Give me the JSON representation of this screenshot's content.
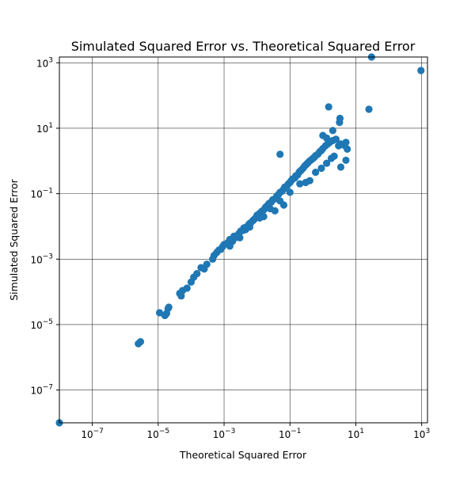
{
  "chart_data": {
    "type": "scatter",
    "title": "Simulated Squared Error vs. Theoretical Squared Error",
    "xlabel": "Theoretical Squared Error",
    "ylabel": "Simulated Squared Error",
    "xscale": "log",
    "yscale": "log",
    "xlim": [
      1e-08,
      1500
    ],
    "ylim": [
      1e-08,
      1500
    ],
    "grid": true,
    "marker_color": "#1f77b4",
    "xticks": [
      {
        "value": 1e-07,
        "base": "10",
        "exp": "−7"
      },
      {
        "value": 1e-05,
        "base": "10",
        "exp": "−5"
      },
      {
        "value": 0.001,
        "base": "10",
        "exp": "−3"
      },
      {
        "value": 0.1,
        "base": "10",
        "exp": "−1"
      },
      {
        "value": 10,
        "base": "10",
        "exp": "1"
      },
      {
        "value": 1000,
        "base": "10",
        "exp": "3"
      }
    ],
    "yticks": [
      {
        "value": 1e-07,
        "base": "10",
        "exp": "−7"
      },
      {
        "value": 1e-05,
        "base": "10",
        "exp": "−5"
      },
      {
        "value": 0.001,
        "base": "10",
        "exp": "−3"
      },
      {
        "value": 0.1,
        "base": "10",
        "exp": "−1"
      },
      {
        "value": 10,
        "base": "10",
        "exp": "1"
      },
      {
        "value": 1000,
        "base": "10",
        "exp": "3"
      }
    ],
    "points": [
      [
        1e-08,
        1e-08
      ],
      [
        2.5e-06,
        2.6e-06
      ],
      [
        2.9e-06,
        3e-06
      ],
      [
        1.1e-05,
        2.3e-05
      ],
      [
        1.6e-05,
        1.9e-05
      ],
      [
        1.8e-05,
        2.2e-05
      ],
      [
        2e-05,
        3.1e-05
      ],
      [
        2.1e-05,
        3.4e-05
      ],
      [
        4.5e-05,
        9e-05
      ],
      [
        5e-05,
        7.5e-05
      ],
      [
        5.5e-05,
        0.00011
      ],
      [
        7.5e-05,
        0.00013
      ],
      [
        0.0001,
        0.0002
      ],
      [
        0.00012,
        0.00028
      ],
      [
        0.00015,
        0.00036
      ],
      [
        0.0002,
        0.00055
      ],
      [
        0.00025,
        0.0005
      ],
      [
        0.0003,
        0.0007
      ],
      [
        0.00045,
        0.001
      ],
      [
        0.0005,
        0.0013
      ],
      [
        0.0006,
        0.0016
      ],
      [
        0.0007,
        0.0019
      ],
      [
        0.0008,
        0.002
      ],
      [
        0.0009,
        0.0024
      ],
      [
        0.001,
        0.0028
      ],
      [
        0.0013,
        0.0032
      ],
      [
        0.0015,
        0.004
      ],
      [
        0.0018,
        0.0035
      ],
      [
        0.002,
        0.005
      ],
      [
        0.0024,
        0.0046
      ],
      [
        0.0028,
        0.006
      ],
      [
        0.0032,
        0.0072
      ],
      [
        0.0037,
        0.0075
      ],
      [
        0.004,
        0.009
      ],
      [
        0.0045,
        0.008
      ],
      [
        0.005,
        0.01
      ],
      [
        0.0058,
        0.012
      ],
      [
        0.0065,
        0.013
      ],
      [
        0.0075,
        0.015
      ],
      [
        0.008,
        0.016
      ],
      [
        0.009,
        0.018
      ],
      [
        0.01,
        0.022
      ],
      [
        0.012,
        0.025
      ],
      [
        0.014,
        0.029
      ],
      [
        0.016,
        0.032
      ],
      [
        0.018,
        0.038
      ],
      [
        0.02,
        0.042
      ],
      [
        0.023,
        0.05
      ],
      [
        0.027,
        0.055
      ],
      [
        0.03,
        0.065
      ],
      [
        0.035,
        0.07
      ],
      [
        0.04,
        0.085
      ],
      [
        0.045,
        0.095
      ],
      [
        0.05,
        0.11
      ],
      [
        0.058,
        0.12
      ],
      [
        0.065,
        0.14
      ],
      [
        0.07,
        0.16
      ],
      [
        0.08,
        0.17
      ],
      [
        0.09,
        0.2
      ],
      [
        0.1,
        0.22
      ],
      [
        0.11,
        0.25
      ],
      [
        0.12,
        0.28
      ],
      [
        0.14,
        0.3
      ],
      [
        0.15,
        0.35
      ],
      [
        0.17,
        0.37
      ],
      [
        0.19,
        0.45
      ],
      [
        0.2,
        0.48
      ],
      [
        0.22,
        0.52
      ],
      [
        0.25,
        0.6
      ],
      [
        0.28,
        0.7
      ],
      [
        0.3,
        0.75
      ],
      [
        0.33,
        0.82
      ],
      [
        0.36,
        0.9
      ],
      [
        0.4,
        1.0
      ],
      [
        0.45,
        1.1
      ],
      [
        0.5,
        1.2
      ],
      [
        0.55,
        1.3
      ],
      [
        0.6,
        1.45
      ],
      [
        0.7,
        1.6
      ],
      [
        0.8,
        1.9
      ],
      [
        0.9,
        2.1
      ],
      [
        1.0,
        2.4
      ],
      [
        1.2,
        2.9
      ],
      [
        1.4,
        3.3
      ],
      [
        1.6,
        3.7
      ],
      [
        2.0,
        4.2
      ],
      [
        2.5,
        4.6
      ],
      [
        3.0,
        2.9
      ],
      [
        3.5,
        3.3
      ],
      [
        4.5,
        3.0
      ],
      [
        5.0,
        3.7
      ],
      [
        5.5,
        2.3
      ],
      [
        0.0015,
        0.0025
      ],
      [
        0.003,
        0.0045
      ],
      [
        0.006,
        0.0095
      ],
      [
        0.012,
        0.018
      ],
      [
        0.025,
        0.035
      ],
      [
        0.05,
        0.06
      ],
      [
        0.1,
        0.11
      ],
      [
        0.2,
        0.2
      ],
      [
        0.3,
        0.22
      ],
      [
        0.4,
        0.25
      ],
      [
        0.6,
        0.45
      ],
      [
        0.9,
        0.6
      ],
      [
        1.3,
        0.85
      ],
      [
        1.8,
        1.2
      ],
      [
        2.2,
        1.4
      ],
      [
        0.016,
        0.02
      ],
      [
        0.035,
        0.03
      ],
      [
        0.065,
        0.045
      ],
      [
        3.5,
        0.65
      ],
      [
        5.0,
        1.05
      ],
      [
        0.05,
        1.6
      ],
      [
        1.0,
        6.0
      ],
      [
        2.0,
        8.5
      ],
      [
        1.3,
        5.0
      ],
      [
        3.2,
        15.0
      ],
      [
        3.3,
        20.0
      ],
      [
        1.5,
        45.0
      ],
      [
        25.0,
        38.0
      ],
      [
        30.0,
        1500.0
      ],
      [
        950.0,
        580.0
      ]
    ]
  }
}
